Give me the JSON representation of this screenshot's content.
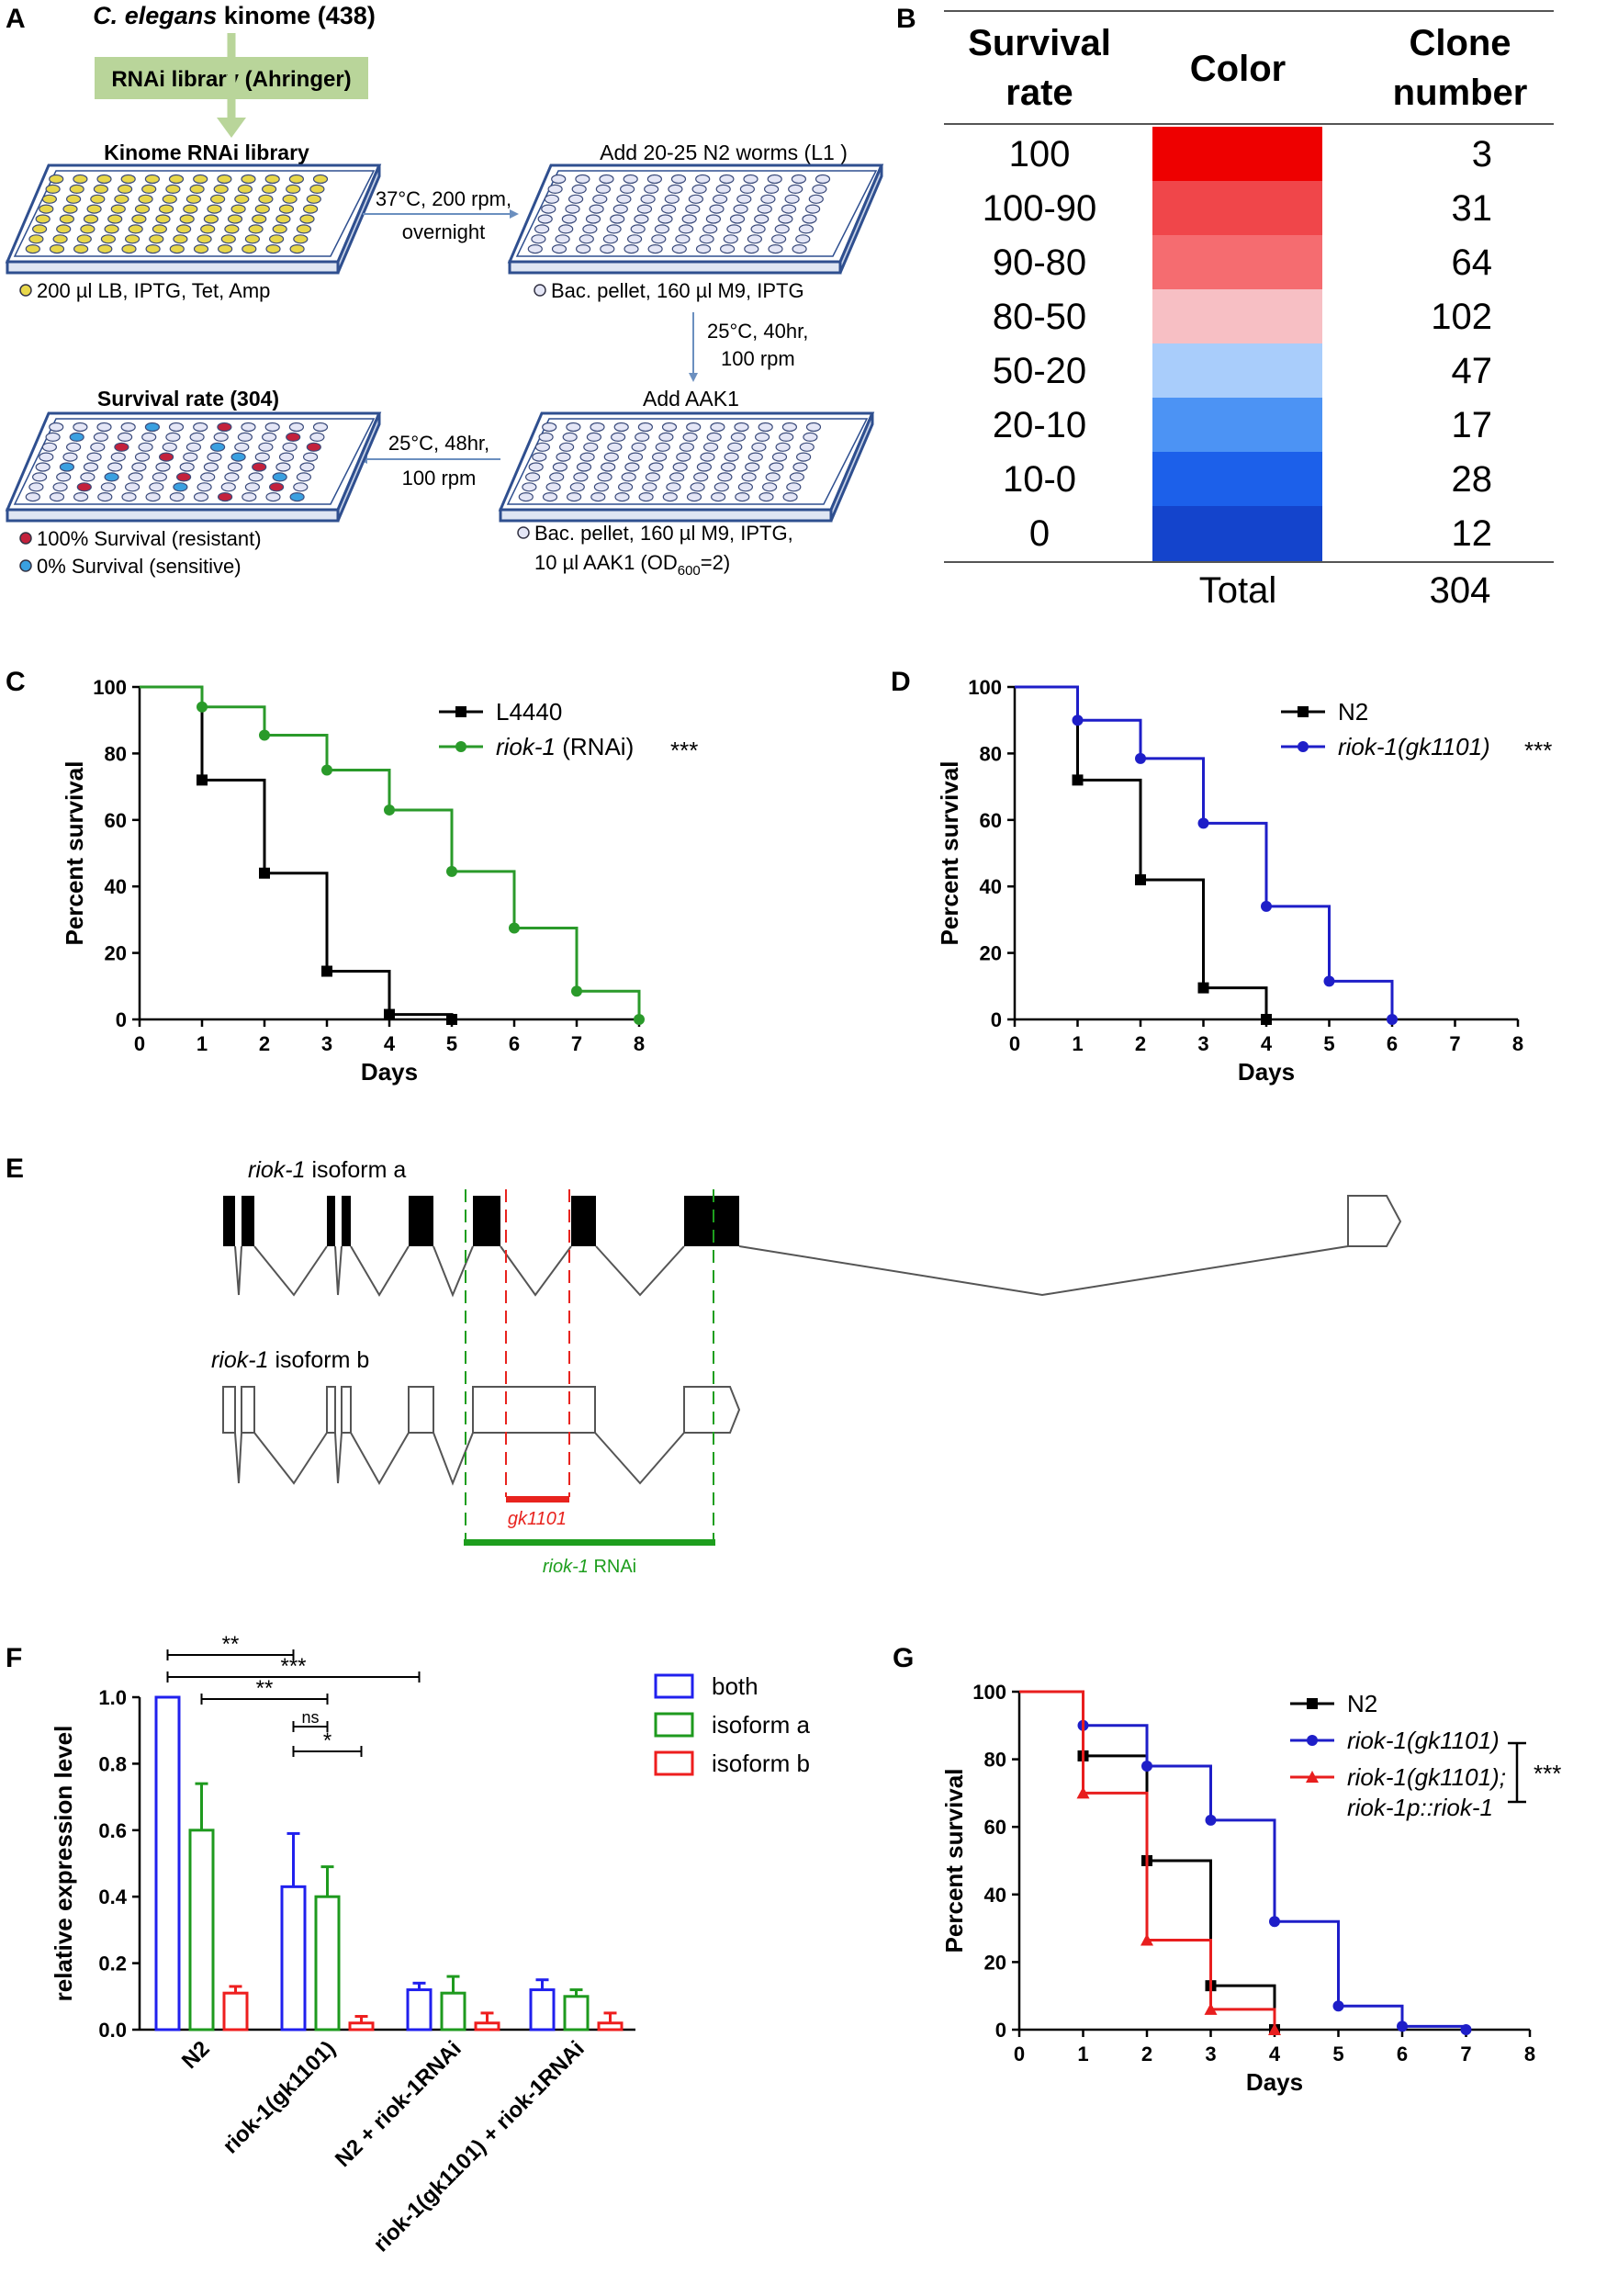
{
  "panels": {
    "A": "A",
    "B": "B",
    "C": "C",
    "D": "D",
    "E": "E",
    "F": "F",
    "G": "G"
  },
  "panelA": {
    "kinome_title_italic": "C. elegans",
    "kinome_title_rest": " kinome (438)",
    "library_box": "RNAi library (Ahringer)",
    "plate1_title": "Kinome RNAi library",
    "plate1_caption": "200 µl LB, IPTG, Tet, Amp",
    "step1_line1": "37°C, 200 rpm,",
    "step1_line2": "overnight",
    "plate2_title": "Add 20-25 N2 worms (L1 )",
    "plate2_caption": "Bac. pellet, 160 µl M9, IPTG",
    "step2_line1": "25°C, 40hr,",
    "step2_line2": "100 rpm",
    "plate3_title": "Add AAK1",
    "plate3_caption_line1": "Bac. pellet, 160 µl M9, IPTG,",
    "plate3_caption_line2_a": "10 µl AAK1 (OD",
    "plate3_caption_line2_sub": "600",
    "plate3_caption_line2_b": "=2)",
    "step3_line1": "25°C, 48hr,",
    "step3_line2": "100 rpm",
    "plate4_title": "Survival rate (304)",
    "legend_resistant": "100% Survival (resistant)",
    "legend_sensitive": "0% Survival (sensitive)",
    "colors": {
      "well_fill": "#e4e6f6",
      "well_yellow": "#e8d74a",
      "well_red": "#c3213c",
      "well_blue": "#3aa0e0",
      "plate_edge": "#2f4f8f",
      "library_green": "#b9d59a"
    }
  },
  "panelB": {
    "header_survival_1": "Survival",
    "header_survival_2": "rate",
    "header_color": "Color",
    "header_clone_1": "Clone",
    "header_clone_2": "number",
    "rows": [
      {
        "rate": "100",
        "color": "#ee0000",
        "count": "3"
      },
      {
        "rate": "100-90",
        "color": "#f0464a",
        "count": "31"
      },
      {
        "rate": "90-80",
        "color": "#f56c70",
        "count": "64"
      },
      {
        "rate": "80-50",
        "color": "#f7bfc4",
        "count": "102"
      },
      {
        "rate": "50-20",
        "color": "#a9cdfb",
        "count": "47"
      },
      {
        "rate": "20-10",
        "color": "#4c93f4",
        "count": "17"
      },
      {
        "rate": "10-0",
        "color": "#1c60ea",
        "count": "28"
      },
      {
        "rate": "0",
        "color": "#1444cc",
        "count": "12"
      }
    ],
    "total_label": "Total",
    "total_value": "304"
  },
  "panelE": {
    "isoform_a_italic": "riok-1",
    "isoform_a_rest": " isoform a",
    "isoform_b_italic": "riok-1",
    "isoform_b_rest": " isoform b",
    "deletion_label": "gk1101",
    "rnai_label_italic": "riok-1",
    "rnai_label_rest": " RNAi",
    "colors": {
      "deletion": "#e8231e",
      "rnai": "#1e9e1e"
    }
  },
  "chart_data": [
    {
      "id": "C",
      "type": "line",
      "subtype": "kaplan-meier",
      "xlabel": "Days",
      "ylabel": "Percent survival",
      "xlim": [
        0,
        8
      ],
      "ylim": [
        0,
        100
      ],
      "xticks": [
        "0",
        "1",
        "2",
        "3",
        "4",
        "5",
        "6",
        "7",
        "8"
      ],
      "yticks": [
        "0",
        "20",
        "40",
        "60",
        "80",
        "100"
      ],
      "legend_position": "top-right",
      "significance": "***",
      "series": [
        {
          "name": "L4440",
          "name_italic": "",
          "name_suffix": "",
          "color": "#000000",
          "marker": "square",
          "x": [
            1,
            2,
            3,
            4,
            5
          ],
          "y": [
            72,
            44,
            14.5,
            1.5,
            0
          ]
        },
        {
          "name": "",
          "name_italic": "riok-1",
          "name_suffix": " (RNAi)",
          "color": "#2a9a2a",
          "marker": "circle",
          "x": [
            1,
            2,
            3,
            4,
            5,
            6,
            7,
            8
          ],
          "y": [
            94,
            85.5,
            75,
            63,
            44.5,
            27.5,
            8.5,
            0
          ]
        }
      ]
    },
    {
      "id": "D",
      "type": "line",
      "subtype": "kaplan-meier",
      "xlabel": "Days",
      "ylabel": "Percent survival",
      "xlim": [
        0,
        8
      ],
      "ylim": [
        0,
        100
      ],
      "xticks": [
        "0",
        "1",
        "2",
        "3",
        "4",
        "5",
        "6",
        "7",
        "8"
      ],
      "yticks": [
        "0",
        "20",
        "40",
        "60",
        "80",
        "100"
      ],
      "legend_position": "top-right",
      "significance": "***",
      "series": [
        {
          "name": "N2",
          "name_italic": "",
          "name_suffix": "",
          "color": "#000000",
          "marker": "square",
          "x": [
            1,
            2,
            3,
            4
          ],
          "y": [
            72,
            42,
            9.5,
            0
          ]
        },
        {
          "name": "",
          "name_italic": "riok-1(gk1101)",
          "name_suffix": "",
          "color": "#1e1ec8",
          "marker": "circle",
          "x": [
            1,
            2,
            3,
            4,
            5,
            6
          ],
          "y": [
            90,
            78.5,
            59,
            34,
            11.5,
            0
          ]
        }
      ]
    },
    {
      "id": "F",
      "type": "bar",
      "ylabel": "relative expression level",
      "ylim": [
        0,
        1.0
      ],
      "yticks": [
        "0.0",
        "0.2",
        "0.4",
        "0.6",
        "0.8",
        "1.0"
      ],
      "categories": [
        "N2",
        "riok-1(gk1101)",
        "N2 + riok-1RNAi",
        "riok-1(gk1101) + riok-1RNAi"
      ],
      "legend_position": "top-right",
      "series": [
        {
          "name": "both",
          "color": "#2020ee",
          "values": [
            1.0,
            0.43,
            0.12,
            0.12
          ],
          "errors": [
            0,
            0.16,
            0.02,
            0.03
          ]
        },
        {
          "name": "isoform a",
          "color": "#1e9a1e",
          "values": [
            0.6,
            0.4,
            0.11,
            0.1
          ],
          "errors": [
            0.14,
            0.09,
            0.05,
            0.02
          ]
        },
        {
          "name": "isoform b",
          "color": "#ee1e1e",
          "values": [
            0.11,
            0.02,
            0.02,
            0.02
          ],
          "errors": [
            0.02,
            0.02,
            0.03,
            0.03
          ]
        }
      ],
      "significance": [
        {
          "label": "**",
          "from": [
            0,
            0
          ],
          "to": [
            1,
            0
          ]
        },
        {
          "label": "***",
          "from": [
            0,
            0
          ],
          "to": [
            2,
            0
          ]
        },
        {
          "label": "**",
          "from": [
            0,
            1
          ],
          "to": [
            1,
            1
          ]
        },
        {
          "label": "ns",
          "from": [
            1,
            0
          ],
          "to": [
            1,
            1
          ]
        },
        {
          "label": "*",
          "from": [
            1,
            0
          ],
          "to": [
            1,
            2
          ]
        }
      ]
    },
    {
      "id": "G",
      "type": "line",
      "subtype": "kaplan-meier",
      "xlabel": "Days",
      "ylabel": "Percent survival",
      "xlim": [
        0,
        8
      ],
      "ylim": [
        0,
        100
      ],
      "xticks": [
        "0",
        "1",
        "2",
        "3",
        "4",
        "5",
        "6",
        "7",
        "8"
      ],
      "yticks": [
        "0",
        "20",
        "40",
        "60",
        "80",
        "100"
      ],
      "legend_position": "top-right",
      "significance": "***",
      "series": [
        {
          "name": "N2",
          "name_italic": "",
          "name_suffix": "",
          "color": "#000000",
          "marker": "square",
          "x": [
            1,
            2,
            3,
            4
          ],
          "y": [
            81,
            50,
            13,
            0
          ]
        },
        {
          "name": "",
          "name_italic": "riok-1(gk1101)",
          "name_suffix": "",
          "color": "#1e1ec8",
          "marker": "circle",
          "x": [
            1,
            2,
            3,
            4,
            5,
            6,
            7
          ],
          "y": [
            90,
            78,
            62,
            32,
            7,
            1,
            0
          ]
        },
        {
          "name": "",
          "name_italic": "riok-1(gk1101);",
          "name_line2_italic": "riok-1p::riok-1",
          "name_suffix": "",
          "color": "#e81e1e",
          "marker": "triangle",
          "x": [
            1,
            2,
            3,
            4
          ],
          "y": [
            70,
            26.5,
            6,
            0
          ]
        }
      ]
    }
  ]
}
